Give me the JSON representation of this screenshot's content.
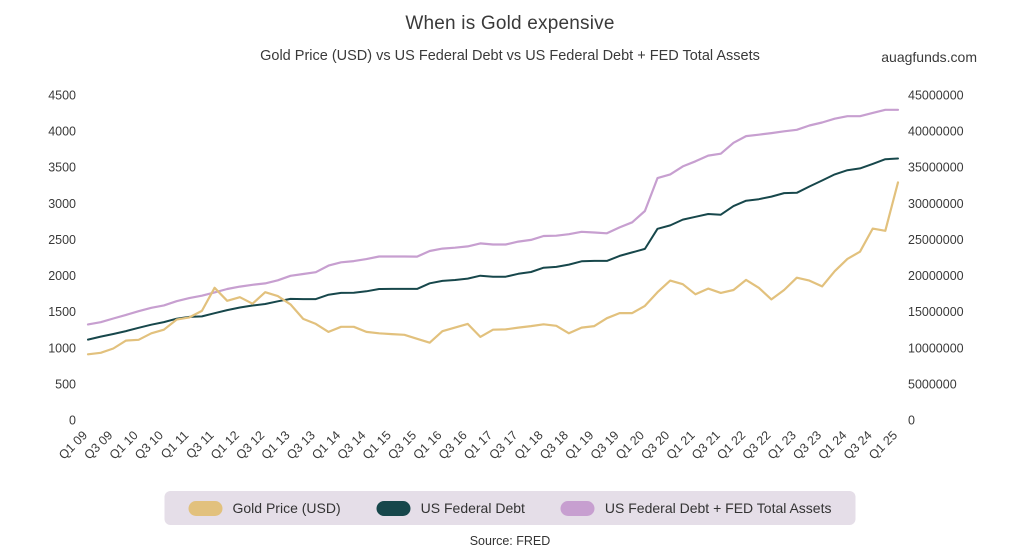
{
  "header": {
    "title": "When is Gold expensive",
    "subtitle": "Gold Price (USD) vs US Federal Debt vs US Federal Debt + FED Total Assets",
    "watermark": "auagfunds.com"
  },
  "footer": {
    "source": "Source: FRED"
  },
  "chart_data": {
    "type": "line",
    "title": "When is Gold expensive",
    "subtitle": "Gold Price (USD) vs US Federal Debt vs US Federal Debt + FED Total Assets",
    "grid": false,
    "legend_position": "bottom",
    "x_label_rotation": -45,
    "x_label_every": 2,
    "x": [
      "Q1 09",
      "Q2 09",
      "Q3 09",
      "Q4 09",
      "Q1 10",
      "Q2 10",
      "Q3 10",
      "Q4 10",
      "Q1 11",
      "Q2 11",
      "Q3 11",
      "Q4 11",
      "Q1 12",
      "Q2 12",
      "Q3 12",
      "Q4 12",
      "Q1 13",
      "Q2 13",
      "Q3 13",
      "Q4 13",
      "Q1 14",
      "Q2 14",
      "Q3 14",
      "Q4 14",
      "Q1 15",
      "Q2 15",
      "Q3 15",
      "Q4 15",
      "Q1 16",
      "Q2 16",
      "Q3 16",
      "Q4 16",
      "Q1 17",
      "Q2 17",
      "Q3 17",
      "Q4 17",
      "Q1 18",
      "Q2 18",
      "Q3 18",
      "Q4 18",
      "Q1 19",
      "Q2 19",
      "Q3 19",
      "Q4 19",
      "Q1 20",
      "Q2 20",
      "Q3 20",
      "Q4 20",
      "Q1 21",
      "Q2 21",
      "Q3 21",
      "Q4 21",
      "Q1 22",
      "Q2 22",
      "Q3 22",
      "Q4 22",
      "Q1 23",
      "Q2 23",
      "Q3 23",
      "Q4 23",
      "Q1 24",
      "Q2 24",
      "Q3 24",
      "Q4 24",
      "Q1 25"
    ],
    "left_axis": {
      "min": 0,
      "max": 4500,
      "ticks": [
        0,
        500,
        1000,
        1500,
        2000,
        2500,
        3000,
        3500,
        4000,
        4500
      ]
    },
    "right_axis": {
      "min": 0,
      "max": 45000000,
      "ticks": [
        0,
        5000000,
        10000000,
        15000000,
        20000000,
        25000000,
        30000000,
        35000000,
        40000000,
        45000000
      ]
    },
    "series": [
      {
        "id": "gold-price",
        "name": "Gold Price (USD)",
        "color": "#e2c17d",
        "axis": "left",
        "width": 2.2,
        "values": [
          910,
          930,
          990,
          1100,
          1110,
          1200,
          1250,
          1390,
          1420,
          1510,
          1830,
          1650,
          1700,
          1610,
          1770,
          1715,
          1600,
          1400,
          1330,
          1220,
          1290,
          1290,
          1220,
          1200,
          1190,
          1180,
          1125,
          1070,
          1230,
          1280,
          1330,
          1150,
          1250,
          1255,
          1280,
          1300,
          1325,
          1305,
          1200,
          1280,
          1300,
          1410,
          1480,
          1480,
          1580,
          1770,
          1930,
          1880,
          1740,
          1820,
          1760,
          1800,
          1940,
          1830,
          1670,
          1800,
          1970,
          1930,
          1850,
          2060,
          2230,
          2330,
          2650,
          2620,
          3290
        ]
      },
      {
        "id": "us-federal-debt",
        "name": "US Federal Debt",
        "color": "#17474b",
        "axis": "right",
        "width": 2.0,
        "values": [
          11130000,
          11545000,
          11910000,
          12311000,
          12773000,
          13202000,
          13562000,
          14025000,
          14270000,
          14343000,
          14790000,
          15223000,
          15582000,
          15856000,
          16066000,
          16433000,
          16771000,
          16738000,
          16738000,
          17352000,
          17601000,
          17633000,
          17824000,
          18141000,
          18152000,
          18152000,
          18151000,
          18922000,
          19265000,
          19381000,
          19573000,
          19977000,
          19846000,
          19844000,
          20245000,
          20493000,
          21090000,
          21195000,
          21516000,
          21974000,
          22028000,
          22023000,
          22719000,
          23201000,
          23687000,
          26477000,
          26945000,
          27748000,
          28133000,
          28529000,
          28429000,
          29617000,
          30369000,
          30569000,
          30929000,
          31420000,
          31458000,
          32332000,
          33167000,
          34001000,
          34586000,
          34832000,
          35465000,
          36104000,
          36210000
        ]
      },
      {
        "id": "us-federal-debt-plus-fed-assets",
        "name": "US Federal Debt + FED Total Assets",
        "color": "#c79fd0",
        "axis": "right",
        "width": 2.2,
        "values": [
          13230000,
          13545000,
          14050000,
          14551000,
          15063000,
          15542000,
          15862000,
          16445000,
          16880000,
          17213000,
          17670000,
          18143000,
          18472000,
          18726000,
          18916000,
          19343000,
          19971000,
          20218000,
          20458000,
          21382000,
          21831000,
          22003000,
          22274000,
          22641000,
          22632000,
          22632000,
          22631000,
          23402000,
          23735000,
          23851000,
          24043000,
          24447000,
          24306000,
          24304000,
          24705000,
          24943000,
          25480000,
          25515000,
          25726000,
          26054000,
          25968000,
          25853000,
          26669000,
          27371000,
          28937000,
          33487000,
          34005000,
          35108000,
          35823000,
          36609000,
          36879000,
          38377000,
          39309000,
          39499000,
          39719000,
          39970000,
          40188000,
          40772000,
          41187000,
          41721000,
          42066000,
          42062000,
          42515000,
          42954000,
          42950000
        ]
      }
    ]
  }
}
